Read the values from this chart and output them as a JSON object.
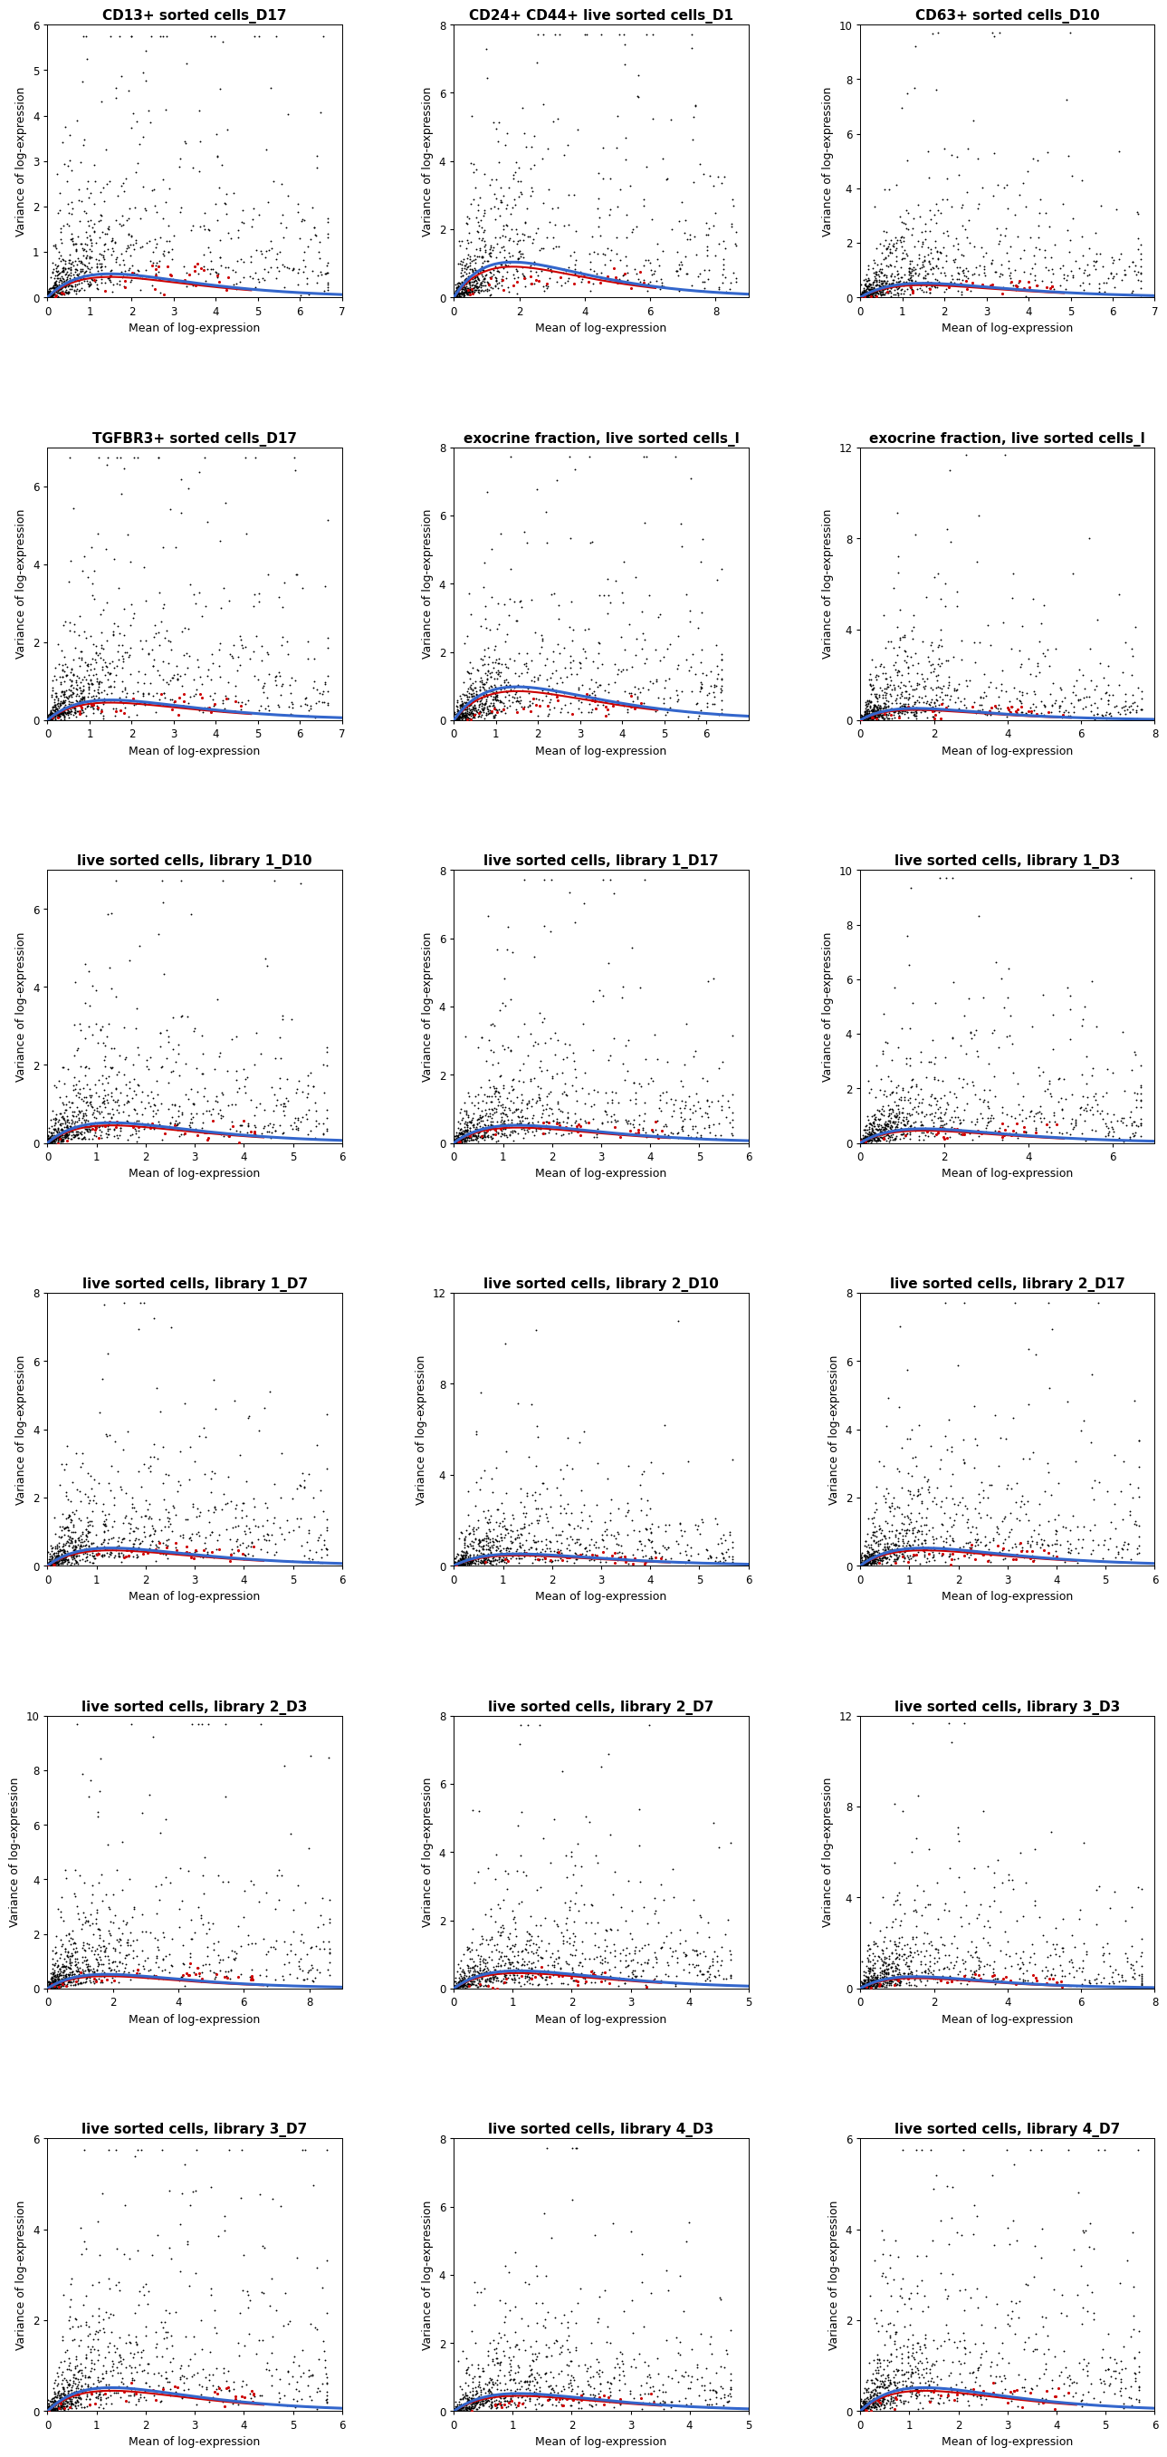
{
  "panels": [
    {
      "title": "CD13+ sorted cells_D17",
      "xlim": [
        0,
        7
      ],
      "ylim": [
        0,
        6
      ],
      "xticks": [
        0,
        1,
        2,
        3,
        4,
        5,
        6,
        7
      ],
      "yticks": [
        0,
        1,
        2,
        3,
        4,
        5,
        6
      ],
      "xmax_data": 6.8,
      "ymax_data": 5.8,
      "peak_x": 1.5,
      "trend_peak": 0.45,
      "sp_xmax": 5.5
    },
    {
      "title": "CD24+ CD44+ live sorted cells_D1",
      "xlim": [
        0,
        9
      ],
      "ylim": [
        0,
        8
      ],
      "xticks": [
        0,
        2,
        4,
        6,
        8
      ],
      "yticks": [
        0,
        2,
        4,
        6,
        8
      ],
      "xmax_data": 8.8,
      "ymax_data": 7.8,
      "peak_x": 1.8,
      "trend_peak": 0.9,
      "sp_xmax": 7.0
    },
    {
      "title": "CD63+ sorted cells_D10",
      "xlim": [
        0,
        7
      ],
      "ylim": [
        0,
        10
      ],
      "xticks": [
        0,
        1,
        2,
        3,
        4,
        5,
        6,
        7
      ],
      "yticks": [
        0,
        2,
        4,
        6,
        8,
        10
      ],
      "xmax_data": 6.8,
      "ymax_data": 9.8,
      "peak_x": 1.5,
      "trend_peak": 0.45,
      "sp_xmax": 5.5
    },
    {
      "title": "TGFBR3+ sorted cells_D17",
      "xlim": [
        0,
        7
      ],
      "ylim": [
        0,
        7
      ],
      "xticks": [
        0,
        1,
        2,
        3,
        4,
        5,
        6,
        7
      ],
      "yticks": [
        0,
        2,
        4,
        6
      ],
      "xmax_data": 6.8,
      "ymax_data": 6.8,
      "peak_x": 1.5,
      "trend_peak": 0.45,
      "sp_xmax": 5.5
    },
    {
      "title": "exocrine fraction, live sorted cells_l",
      "xlim": [
        0,
        7
      ],
      "ylim": [
        0,
        8
      ],
      "xticks": [
        0,
        1,
        2,
        3,
        4,
        5,
        6
      ],
      "yticks": [
        0,
        2,
        4,
        6,
        8
      ],
      "xmax_data": 6.5,
      "ymax_data": 7.8,
      "peak_x": 1.5,
      "trend_peak": 0.85,
      "sp_xmax": 5.5
    },
    {
      "title": "exocrine fraction, live sorted cells_l",
      "xlim": [
        0,
        8
      ],
      "ylim": [
        0,
        12
      ],
      "xticks": [
        0,
        2,
        4,
        6,
        8
      ],
      "yticks": [
        0,
        4,
        8,
        12
      ],
      "xmax_data": 7.8,
      "ymax_data": 11.8,
      "peak_x": 1.5,
      "trend_peak": 0.45,
      "sp_xmax": 6.5
    },
    {
      "title": "live sorted cells, library 1_D10",
      "xlim": [
        0,
        6
      ],
      "ylim": [
        0,
        7
      ],
      "xticks": [
        0,
        1,
        2,
        3,
        4,
        5,
        6
      ],
      "yticks": [
        0,
        2,
        4,
        6
      ],
      "xmax_data": 5.8,
      "ymax_data": 6.8,
      "peak_x": 1.3,
      "trend_peak": 0.45,
      "sp_xmax": 5.0
    },
    {
      "title": "live sorted cells, library 1_D17",
      "xlim": [
        0,
        6
      ],
      "ylim": [
        0,
        8
      ],
      "xticks": [
        0,
        1,
        2,
        3,
        4,
        5,
        6
      ],
      "yticks": [
        0,
        2,
        4,
        6,
        8
      ],
      "xmax_data": 5.8,
      "ymax_data": 7.8,
      "peak_x": 1.3,
      "trend_peak": 0.45,
      "sp_xmax": 5.0
    },
    {
      "title": "live sorted cells, library 1_D3",
      "xlim": [
        0,
        7
      ],
      "ylim": [
        0,
        10
      ],
      "xticks": [
        0,
        2,
        4,
        6
      ],
      "yticks": [
        0,
        2,
        4,
        6,
        8,
        10
      ],
      "xmax_data": 6.8,
      "ymax_data": 9.8,
      "peak_x": 1.5,
      "trend_peak": 0.45,
      "sp_xmax": 5.5
    },
    {
      "title": "live sorted cells, library 1_D7",
      "xlim": [
        0,
        6
      ],
      "ylim": [
        0,
        8
      ],
      "xticks": [
        0,
        1,
        2,
        3,
        4,
        5,
        6
      ],
      "yticks": [
        0,
        2,
        4,
        6,
        8
      ],
      "xmax_data": 5.8,
      "ymax_data": 7.8,
      "peak_x": 1.3,
      "trend_peak": 0.45,
      "sp_xmax": 5.0
    },
    {
      "title": "live sorted cells, library 2_D10",
      "xlim": [
        0,
        6
      ],
      "ylim": [
        0,
        12
      ],
      "xticks": [
        0,
        1,
        2,
        3,
        4,
        5,
        6
      ],
      "yticks": [
        0,
        4,
        8,
        12
      ],
      "xmax_data": 5.8,
      "ymax_data": 11.8,
      "peak_x": 1.3,
      "trend_peak": 0.45,
      "sp_xmax": 5.0
    },
    {
      "title": "live sorted cells, library 2_D17",
      "xlim": [
        0,
        6
      ],
      "ylim": [
        0,
        8
      ],
      "xticks": [
        0,
        1,
        2,
        3,
        4,
        5,
        6
      ],
      "yticks": [
        0,
        2,
        4,
        6,
        8
      ],
      "xmax_data": 5.8,
      "ymax_data": 7.8,
      "peak_x": 1.3,
      "trend_peak": 0.45,
      "sp_xmax": 5.0
    },
    {
      "title": "live sorted cells, library 2_D3",
      "xlim": [
        0,
        9
      ],
      "ylim": [
        0,
        10
      ],
      "xticks": [
        0,
        2,
        4,
        6,
        8
      ],
      "yticks": [
        0,
        2,
        4,
        6,
        8,
        10
      ],
      "xmax_data": 8.8,
      "ymax_data": 9.8,
      "peak_x": 1.8,
      "trend_peak": 0.45,
      "sp_xmax": 7.5
    },
    {
      "title": "live sorted cells, library 2_D7",
      "xlim": [
        0,
        5
      ],
      "ylim": [
        0,
        8
      ],
      "xticks": [
        0,
        1,
        2,
        3,
        4,
        5
      ],
      "yticks": [
        0,
        2,
        4,
        6,
        8
      ],
      "xmax_data": 4.8,
      "ymax_data": 7.8,
      "peak_x": 1.1,
      "trend_peak": 0.45,
      "sp_xmax": 4.0
    },
    {
      "title": "live sorted cells, library 3_D3",
      "xlim": [
        0,
        8
      ],
      "ylim": [
        0,
        12
      ],
      "xticks": [
        0,
        2,
        4,
        6,
        8
      ],
      "yticks": [
        0,
        4,
        8,
        12
      ],
      "xmax_data": 7.8,
      "ymax_data": 11.8,
      "peak_x": 1.5,
      "trend_peak": 0.45,
      "sp_xmax": 6.5
    },
    {
      "title": "live sorted cells, library 3_D7",
      "xlim": [
        0,
        6
      ],
      "ylim": [
        0,
        6
      ],
      "xticks": [
        0,
        1,
        2,
        3,
        4,
        5,
        6
      ],
      "yticks": [
        0,
        2,
        4,
        6
      ],
      "xmax_data": 5.8,
      "ymax_data": 5.8,
      "peak_x": 1.3,
      "trend_peak": 0.45,
      "sp_xmax": 5.0
    },
    {
      "title": "live sorted cells, library 4_D3",
      "xlim": [
        0,
        5
      ],
      "ylim": [
        0,
        8
      ],
      "xticks": [
        0,
        1,
        2,
        3,
        4,
        5
      ],
      "yticks": [
        0,
        2,
        4,
        6,
        8
      ],
      "xmax_data": 4.8,
      "ymax_data": 7.8,
      "peak_x": 1.1,
      "trend_peak": 0.45,
      "sp_xmax": 4.0
    },
    {
      "title": "live sorted cells, library 4_D7",
      "xlim": [
        0,
        6
      ],
      "ylim": [
        0,
        6
      ],
      "xticks": [
        0,
        1,
        2,
        3,
        4,
        5,
        6
      ],
      "yticks": [
        0,
        2,
        4,
        6
      ],
      "xmax_data": 5.8,
      "ymax_data": 5.8,
      "peak_x": 1.3,
      "trend_peak": 0.45,
      "sp_xmax": 5.0
    }
  ],
  "gene_color": "#000000",
  "spikein_color": "#CC0000",
  "trend_color": "#3366CC",
  "xlabel": "Mean of log-expression",
  "ylabel": "Variance of log-expression",
  "background_color": "#ffffff",
  "nrows": 6,
  "ncols": 3,
  "title_fontsize": 11,
  "axis_fontsize": 9,
  "tick_fontsize": 8.5,
  "n_genes": 800,
  "n_spikein": 35
}
